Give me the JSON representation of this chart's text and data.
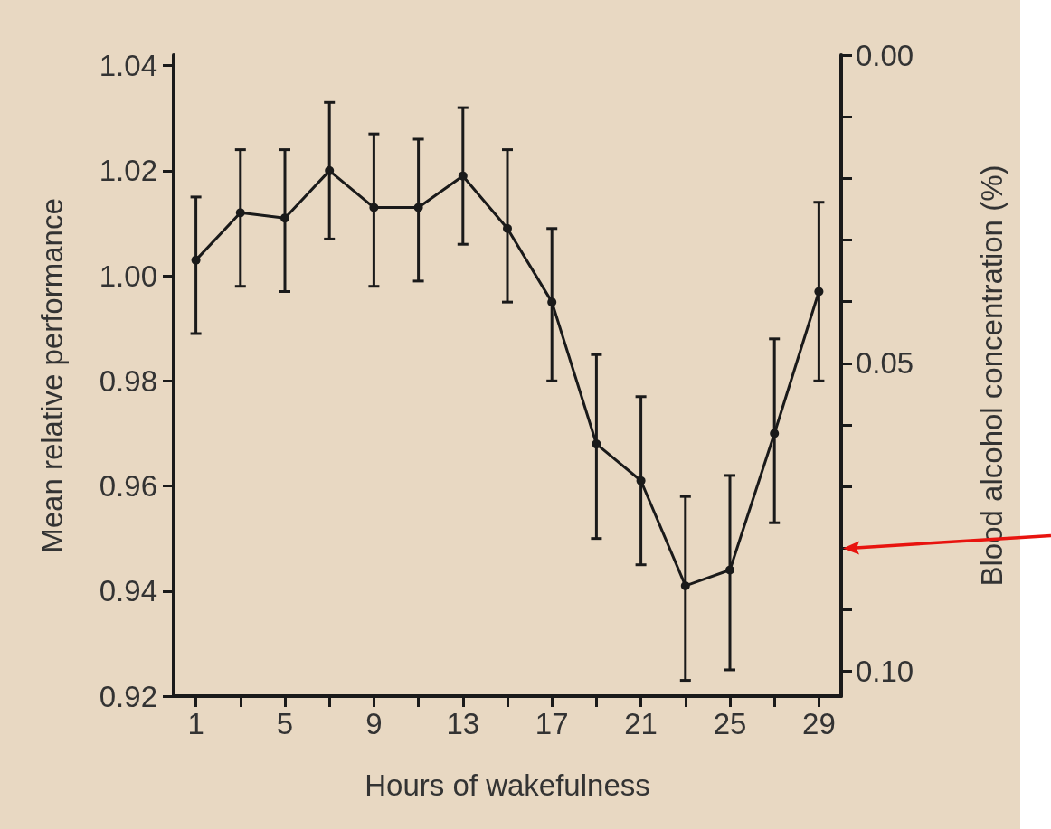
{
  "chart_data": {
    "type": "line",
    "xlabel": "Hours of wakefulness",
    "ylabel": "Mean relative performance",
    "y2label": "Blood alcohol concentration (%)",
    "x": [
      1,
      3,
      5,
      7,
      9,
      11,
      13,
      15,
      17,
      19,
      21,
      23,
      25,
      27,
      29
    ],
    "series": [
      {
        "color": "#1a1a1a",
        "values": [
          1.003,
          1.012,
          1.011,
          1.02,
          1.013,
          1.013,
          1.019,
          1.009,
          0.995,
          0.968,
          0.961,
          0.941,
          0.944,
          0.97,
          0.997
        ],
        "errors": [
          [
            0.989,
            1.015
          ],
          [
            0.998,
            1.024
          ],
          [
            0.997,
            1.024
          ],
          [
            1.007,
            1.033
          ],
          [
            0.998,
            1.027
          ],
          [
            0.999,
            1.026
          ],
          [
            1.006,
            1.032
          ],
          [
            0.995,
            1.024
          ],
          [
            0.98,
            1.009
          ],
          [
            0.95,
            0.985
          ],
          [
            0.945,
            0.977
          ],
          [
            0.923,
            0.958
          ],
          [
            0.925,
            0.962
          ],
          [
            0.953,
            0.988
          ],
          [
            0.98,
            1.014
          ]
        ]
      }
    ],
    "xlim": [
      0,
      30
    ],
    "xticks": [
      1,
      {
        "value": 3,
        "label": null
      },
      5,
      {
        "value": 7,
        "label": null
      },
      9,
      {
        "value": 11,
        "label": null
      },
      13,
      {
        "value": 15,
        "label": null
      },
      17,
      {
        "value": 19,
        "label": null
      },
      21,
      {
        "value": 23,
        "label": null
      },
      25,
      {
        "value": 27,
        "label": null
      },
      29
    ],
    "ylim": [
      0.92,
      1.042
    ],
    "yticks": [
      0.92,
      0.94,
      0.96,
      0.98,
      {
        "value": 1,
        "label": "1.00"
      },
      1.02,
      1.04
    ],
    "y2lim": [
      0.104,
      0
    ],
    "y2ticks": [
      {
        "value": 0,
        "label": "0.00"
      },
      {
        "value": 0.01,
        "label": null
      },
      {
        "value": 0.02,
        "label": null
      },
      {
        "value": 0.03,
        "label": null
      },
      {
        "value": 0.04,
        "label": null
      },
      0.05,
      {
        "value": 0.06,
        "label": null
      },
      {
        "value": 0.07,
        "label": null
      },
      {
        "value": 0.08,
        "label": null
      },
      {
        "value": 0.09,
        "label": null
      },
      {
        "value": 0.1,
        "label": "0.10"
      }
    ],
    "marker": "circle",
    "line_style": "solid"
  }
}
